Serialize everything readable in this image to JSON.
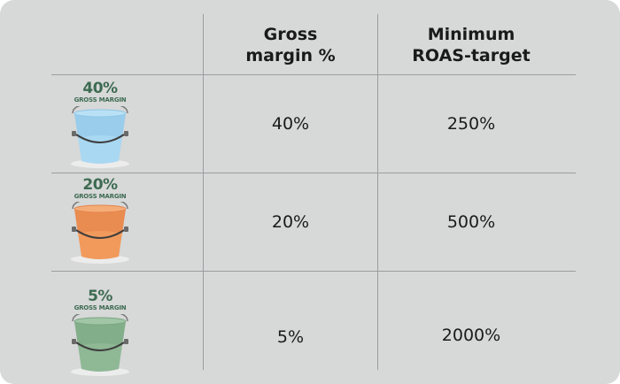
{
  "table": {
    "headers": [
      {
        "line1": "Gross",
        "line2": "margin %"
      },
      {
        "line1": "Minimum",
        "line2": "ROAS-target"
      }
    ],
    "rows": [
      {
        "bucket": {
          "pct": "40%",
          "sub": "GROSS MARGIN",
          "color": "#a9d8f2",
          "shade": "#8fc6e6"
        },
        "gross_margin": "40%",
        "roas_target": "250%"
      },
      {
        "bucket": {
          "pct": "20%",
          "sub": "GROSS MARGIN",
          "color": "#f19a5c",
          "shade": "#e5844a"
        },
        "gross_margin": "20%",
        "roas_target": "500%"
      },
      {
        "bucket": {
          "pct": "5%",
          "sub": "GROSS MARGIN",
          "color": "#8fb895",
          "shade": "#7aa682"
        },
        "gross_margin": "5%",
        "roas_target": "2000%"
      }
    ]
  },
  "colors": {
    "background": "#d7d8d8",
    "gridline": "#9b9d9f",
    "label_green": "#3d6b52",
    "text": "#1a1a1a"
  }
}
